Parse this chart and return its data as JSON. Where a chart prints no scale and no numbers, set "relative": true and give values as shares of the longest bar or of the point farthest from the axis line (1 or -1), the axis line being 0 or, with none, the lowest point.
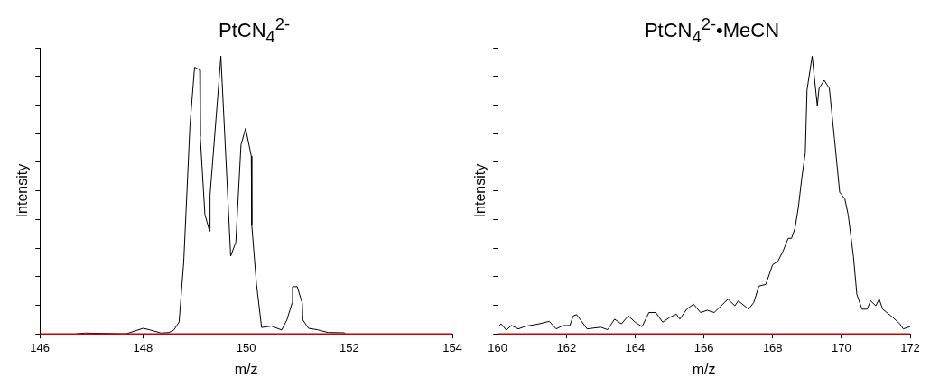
{
  "chart_data": [
    {
      "type": "line",
      "title": "PtCN$_{4}$$^{2-}$",
      "xlabel": "m/z",
      "ylabel": "Intensity",
      "relative": true,
      "xlim": [
        146,
        154
      ],
      "xticks": [
        146,
        148,
        150,
        152,
        154
      ],
      "grid": false,
      "legend": false,
      "marker": "none",
      "ref_lines": [
        {
          "axis": "y",
          "value": 0,
          "color": "#cc0000"
        }
      ],
      "series": [
        {
          "color": "#000000",
          "x": [
            146.7,
            146.88,
            147.67,
            148.0,
            148.12,
            148.35,
            148.5,
            148.6,
            148.7,
            148.79,
            148.91,
            149.0,
            149.1,
            149.11,
            149.2,
            149.29,
            149.3,
            149.51,
            149.7,
            149.8,
            149.9,
            149.99,
            150.1,
            150.11,
            150.2,
            150.3,
            150.49,
            150.69,
            150.79,
            150.89,
            150.9,
            150.99,
            151.09,
            151.1,
            151.21,
            151.38,
            151.59,
            151.9,
            151.93
          ],
          "values": [
            0,
            0.003,
            0,
            0.02,
            0.015,
            0.003,
            0.005,
            0.014,
            0.043,
            0.26,
            0.75,
            0.96,
            0.95,
            0.71,
            0.43,
            0.37,
            0.5,
            1.0,
            0.28,
            0.33,
            0.68,
            0.74,
            0.64,
            0.39,
            0.18,
            0.023,
            0.028,
            0.014,
            0.05,
            0.11,
            0.17,
            0.17,
            0.11,
            0.05,
            0.02,
            0.015,
            0.005,
            0.004,
            0
          ]
        }
      ]
    },
    {
      "type": "line",
      "title": "PtCN$_{4}$$^{2-}$•MeCN",
      "xlabel": "m/z",
      "ylabel": "Intensity",
      "relative": true,
      "xlim": [
        160,
        172
      ],
      "xticks": [
        160,
        162,
        164,
        166,
        168,
        170,
        172
      ],
      "grid": false,
      "legend": false,
      "marker": "none",
      "ref_lines": [
        {
          "axis": "y",
          "value": 0,
          "color": "#cc0000"
        }
      ],
      "series": [
        {
          "color": "#000000",
          "x": [
            160,
            160.1,
            160.25,
            160.4,
            160.6,
            160.8,
            161.2,
            161.5,
            161.7,
            161.9,
            162.1,
            162.2,
            162.3,
            162.6,
            163,
            163.2,
            163.4,
            163.6,
            163.8,
            164.0,
            164.2,
            164.4,
            164.6,
            164.8,
            165.0,
            165.2,
            165.3,
            165.5,
            165.7,
            165.9,
            166.1,
            166.3,
            166.5,
            166.7,
            166.9,
            167.0,
            167.3,
            167.45,
            167.6,
            167.8,
            168.0,
            168.15,
            168.3,
            168.45,
            168.55,
            168.65,
            168.75,
            168.85,
            168.95,
            169.0,
            169.15,
            169.3,
            169.35,
            169.5,
            169.65,
            169.8,
            169.95,
            170.1,
            170.2,
            170.35,
            170.45,
            170.6,
            170.75,
            170.85,
            171.0,
            171.1,
            171.2,
            171.5,
            171.7,
            171.8,
            171.95,
            172
          ],
          "values": [
            0.024,
            0.036,
            0.014,
            0.03,
            0.018,
            0.027,
            0.036,
            0.045,
            0.018,
            0.03,
            0.03,
            0.065,
            0.069,
            0.018,
            0.024,
            0.015,
            0.053,
            0.036,
            0.065,
            0.042,
            0.026,
            0.077,
            0.077,
            0.042,
            0.059,
            0.071,
            0.053,
            0.089,
            0.107,
            0.077,
            0.085,
            0.077,
            0.101,
            0.125,
            0.101,
            0.119,
            0.089,
            0.113,
            0.172,
            0.178,
            0.249,
            0.261,
            0.297,
            0.344,
            0.344,
            0.38,
            0.457,
            0.563,
            0.652,
            0.878,
            1.0,
            0.821,
            0.884,
            0.913,
            0.884,
            0.7,
            0.51,
            0.486,
            0.427,
            0.279,
            0.142,
            0.089,
            0.089,
            0.119,
            0.101,
            0.125,
            0.089,
            0.059,
            0.036,
            0.018,
            0.024,
            0.026
          ]
        }
      ]
    }
  ]
}
